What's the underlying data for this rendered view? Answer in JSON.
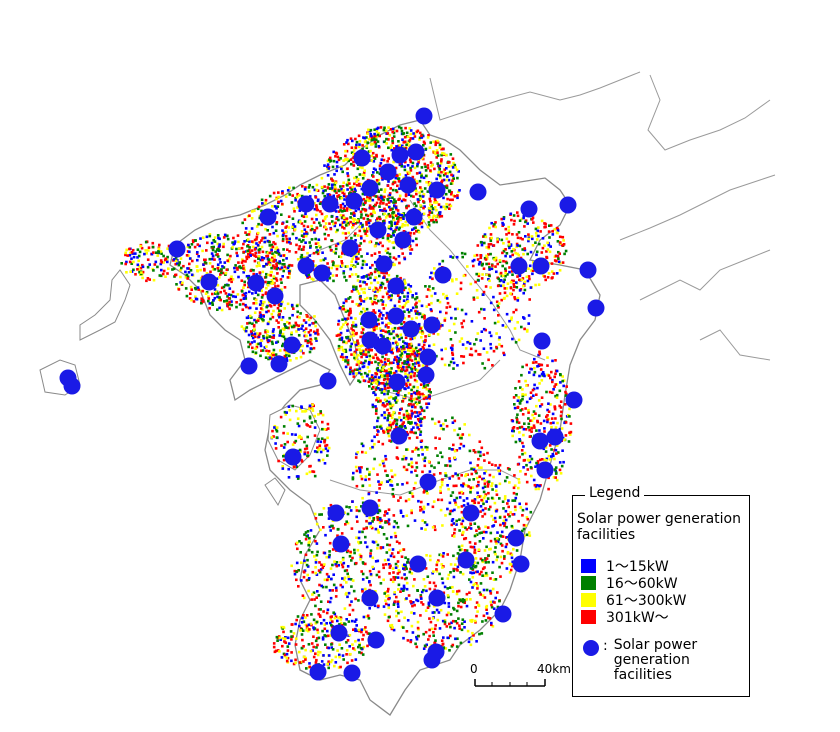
{
  "legend": {
    "title": "Legend",
    "heading": "Solar power generation facilities",
    "classes": [
      {
        "label": "1～15kW",
        "color": "#0000ff"
      },
      {
        "label": "16～60kW",
        "color": "#008000"
      },
      {
        "label": "61～300kW",
        "color": "#ffff00"
      },
      {
        "label": "301kW～",
        "color": "#ff0000"
      }
    ],
    "marker_label": "Solar power generation facilities",
    "marker_prefix": ":"
  },
  "scale_bar": {
    "start": "0",
    "end": "40km"
  },
  "colors": {
    "marker": "#1a1ae6",
    "coast": "#8a8a8a"
  }
}
